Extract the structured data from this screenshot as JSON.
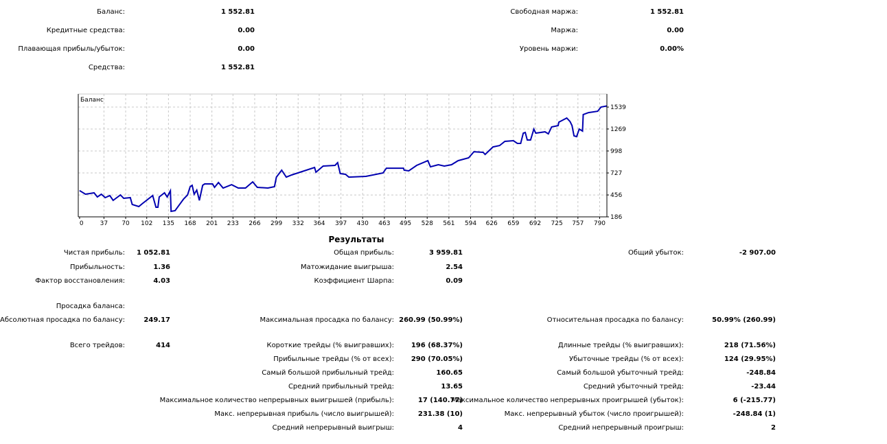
{
  "account": {
    "left": [
      {
        "label": "Баланс:",
        "value": "1 552.81"
      },
      {
        "label": "Кредитные средства:",
        "value": "0.00"
      },
      {
        "label": "Плавающая прибыль/убыток:",
        "value": "0.00"
      },
      {
        "label": "Средства:",
        "value": "1 552.81"
      }
    ],
    "right": [
      {
        "label": "Свободная маржа:",
        "value": "1 552.81"
      },
      {
        "label": "Маржа:",
        "value": "0.00"
      },
      {
        "label": "Уровень маржи:",
        "value": "0.00%"
      }
    ]
  },
  "chart_data": {
    "type": "line",
    "title": "Баланс",
    "xlabel": "",
    "ylabel": "",
    "xlim": [
      -2,
      801
    ],
    "ylim": [
      186,
      1700
    ],
    "grid": true,
    "line_color": "#0000b0",
    "x_ticks": [
      0,
      37,
      70,
      102,
      135,
      168,
      201,
      233,
      266,
      299,
      332,
      364,
      397,
      430,
      463,
      495,
      528,
      561,
      594,
      626,
      659,
      692,
      725,
      757,
      790
    ],
    "y_ticks": [
      186,
      456,
      727,
      998,
      1269,
      1539
    ],
    "series": [
      {
        "name": "Баланс",
        "x": [
          0,
          9,
          22,
          27,
          33,
          39,
          46,
          51,
          62,
          67,
          77,
          80,
          90,
          95,
          111,
          116,
          119,
          121,
          129,
          133,
          138,
          139,
          145,
          158,
          164,
          168,
          171,
          174,
          178,
          182,
          187,
          190,
          202,
          205,
          211,
          218,
          231,
          241,
          252,
          263,
          270,
          286,
          296,
          299,
          307,
          314,
          322,
          338,
          357,
          359,
          370,
          388,
          392,
          396,
          404,
          409,
          435,
          461,
          466,
          492,
          493,
          500,
          512,
          529,
          533,
          545,
          554,
          565,
          575,
          591,
          599,
          613,
          616,
          628,
          638,
          646,
          659,
          665,
          670,
          674,
          677,
          680,
          685,
          690,
          693,
          707,
          712,
          717,
          727,
          728,
          740,
          745,
          748,
          751,
          755,
          759,
          764,
          765,
          773,
          787,
          792,
          801
        ],
        "y": [
          510,
          465,
          482,
          431,
          465,
          423,
          448,
          389,
          456,
          414,
          423,
          338,
          313,
          347,
          448,
          304,
          304,
          431,
          482,
          431,
          507,
          254,
          262,
          406,
          456,
          558,
          575,
          465,
          516,
          389,
          575,
          592,
          592,
          550,
          609,
          541,
          583,
          541,
          541,
          617,
          550,
          541,
          558,
          676,
          761,
          676,
          702,
          744,
          795,
          736,
          812,
          820,
          854,
          719,
          710,
          676,
          685,
          727,
          786,
          786,
          761,
          753,
          820,
          879,
          803,
          829,
          812,
          829,
          879,
          913,
          989,
          981,
          955,
          1048,
          1065,
          1116,
          1125,
          1091,
          1091,
          1218,
          1226,
          1133,
          1133,
          1268,
          1218,
          1234,
          1209,
          1294,
          1311,
          1353,
          1404,
          1361,
          1311,
          1184,
          1175,
          1268,
          1243,
          1446,
          1471,
          1488,
          1539,
          1553
        ]
      }
    ]
  },
  "results": {
    "title": "Результаты",
    "rows": [
      {
        "c1": {
          "label": "Чистая прибыль:",
          "value": "1 052.81"
        },
        "c2": {
          "label": "Общая прибыль:",
          "value": "3 959.81"
        },
        "c3": {
          "label": "Общий убыток:",
          "value": "-2 907.00"
        }
      },
      {
        "c1": {
          "label": "Прибыльность:",
          "value": "1.36"
        },
        "c2": {
          "label": "Матожидание выигрыша:",
          "value": "2.54"
        }
      },
      {
        "c1": {
          "label": "Фактор восстановления:",
          "value": "4.03"
        },
        "c2": {
          "label": "Коэффициент Шарпа:",
          "value": "0.09"
        }
      },
      {
        "c1": {
          "label": "Просадка баланса:"
        }
      },
      {
        "c1": {
          "label": "Абсолютная просадка по балансу:",
          "value": "249.17"
        },
        "c2": {
          "label": "Максимальная просадка по балансу:",
          "value": "260.99 (50.99%)"
        },
        "c3": {
          "label": "Относительная просадка по балансу:",
          "value": "50.99% (260.99)"
        }
      },
      {
        "c1": {
          "label": "Всего трейдов:",
          "value": "414"
        },
        "c2": {
          "label": "Короткие трейды (% выигравших):",
          "value": "196 (68.37%)"
        },
        "c3": {
          "label": "Длинные трейды (% выигравших):",
          "value": "218 (71.56%)"
        }
      },
      {
        "c2": {
          "label": "Прибыльные трейды (% от всех):",
          "value": "290 (70.05%)"
        },
        "c3": {
          "label": "Убыточные трейды (% от всех):",
          "value": "124 (29.95%)"
        }
      },
      {
        "c2": {
          "label": "Самый большой прибыльный трейд:",
          "value": "160.65"
        },
        "c3": {
          "label": "Самый большой убыточный трейд:",
          "value": "-248.84"
        }
      },
      {
        "c2": {
          "label": "Средний прибыльный трейд:",
          "value": "13.65"
        },
        "c3": {
          "label": "Средний убыточный трейд:",
          "value": "-23.44"
        }
      },
      {
        "c2": {
          "label": "Максимальное количество непрерывных выигрышей (прибыль):",
          "value": "17 (140.77)"
        },
        "c3": {
          "label": "Максимальное количество непрерывных проигрышей (убыток):",
          "value": "6 (-215.77)"
        }
      },
      {
        "c2": {
          "label": "Макс. непрерывная прибыль (число выигрышей):",
          "value": "231.38 (10)"
        },
        "c3": {
          "label": "Макс. непрерывный убыток (число проигрышей):",
          "value": "-248.84 (1)"
        }
      },
      {
        "c2": {
          "label": "Средний непрерывный выигрыш:",
          "value": "4"
        },
        "c3": {
          "label": "Средний непрерывный проигрыш:",
          "value": "2"
        }
      }
    ]
  }
}
